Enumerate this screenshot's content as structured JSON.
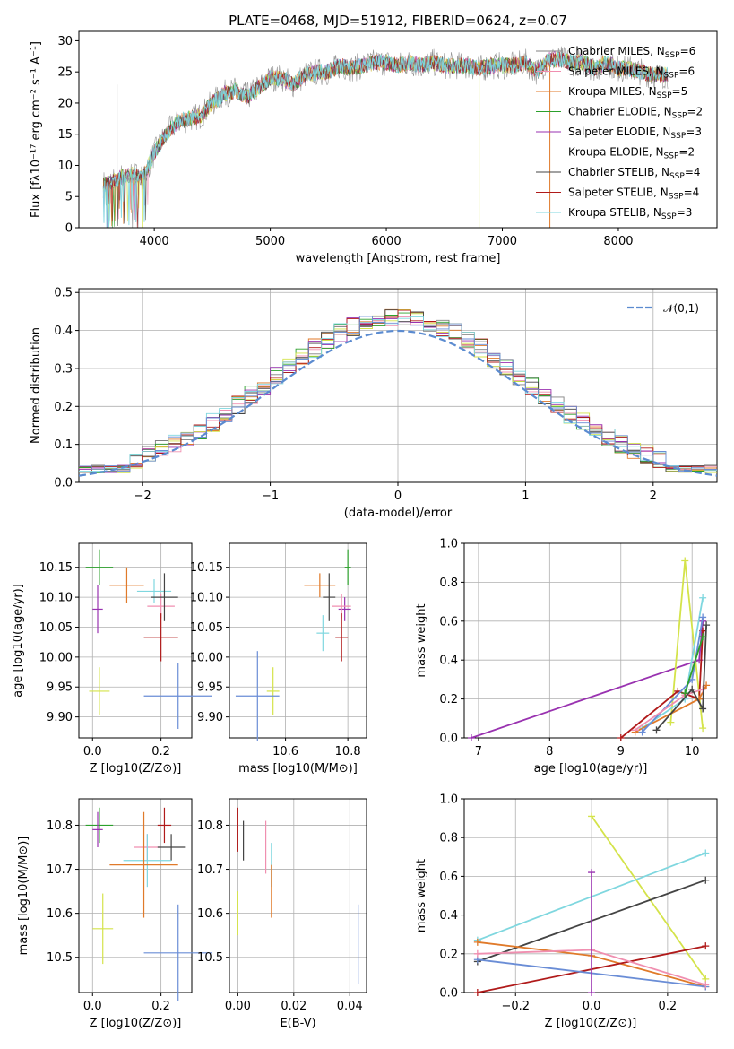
{
  "figure": {
    "title": "PLATE=0468, MJD=51912, FIBERID=0624, z=0.07"
  },
  "legend_colors": [
    "#808080",
    "#f08fb0",
    "#e07a2a",
    "#2ca02c",
    "#9932b0",
    "#d4e34a",
    "#444444",
    "#b01a1a",
    "#7fd7df"
  ],
  "chart_data": [
    {
      "id": "spectrum",
      "type": "line",
      "xlabel": "wavelength [Angstrom, rest frame]",
      "ylabel": "Flux [fλ10⁻¹⁷ erg cm⁻² s⁻¹ A⁻¹]",
      "xlim": [
        3350,
        8850
      ],
      "ylim": [
        0,
        31.5
      ],
      "xticks": [
        4000,
        5000,
        6000,
        7000,
        8000
      ],
      "yticks": [
        0,
        5,
        10,
        15,
        20,
        25,
        30
      ],
      "grid": false,
      "legend_position": "top-right",
      "envelope_x": [
        3600,
        3700,
        3800,
        3900,
        4000,
        4100,
        4200,
        4300,
        4400,
        4500,
        4600,
        4700,
        4800,
        4900,
        5000,
        5100,
        5200,
        5300,
        5400,
        5500,
        5600,
        5700,
        5800,
        5900,
        6000,
        6100,
        6200,
        6300,
        6400,
        6500,
        6600,
        6700,
        6800,
        6900,
        7000,
        7100,
        7200,
        7300,
        7400,
        7500,
        7600,
        7700,
        7800,
        7900,
        8000,
        8100,
        8200,
        8300,
        8400
      ],
      "envelope_y": [
        7,
        8,
        8.5,
        8,
        12,
        15,
        17,
        17.5,
        18,
        20,
        21.5,
        22,
        21,
        22.5,
        24,
        24,
        23,
        24.5,
        25,
        25,
        26,
        25.5,
        26,
        26.5,
        26.5,
        26,
        26.5,
        26,
        26.5,
        26,
        26,
        26,
        25.5,
        26,
        26,
        26,
        26.5,
        25,
        27,
        27,
        26.5,
        26.5,
        25.5,
        26.5,
        25.5,
        25.5,
        25,
        24.5,
        24.5
      ],
      "legend": [
        "Chabrier MILES, N_SSP=6",
        "Salpeter MILES, N_SSP=6",
        "Kroupa MILES, N_SSP=5",
        "Chabrier ELODIE, N_SSP=2",
        "Salpeter ELODIE, N_SSP=3",
        "Kroupa ELODIE, N_SSP=2",
        "Chabrier STELIB, N_SSP=4",
        "Salpeter STELIB, N_SSP=4",
        "Kroupa STELIB, N_SSP=3"
      ]
    },
    {
      "id": "residuals",
      "type": "line",
      "xlabel": "(data-model)/error",
      "ylabel": "Normed distribution",
      "xlim": [
        -2.5,
        2.5
      ],
      "ylim": [
        0,
        0.51
      ],
      "xticks": [
        -2,
        -1,
        0,
        1,
        2
      ],
      "yticks": [
        0.0,
        0.1,
        0.2,
        0.3,
        0.4,
        0.5
      ],
      "grid": true,
      "legend": [
        "𝒩(0,1)"
      ],
      "legend_position": "top-right"
    },
    {
      "id": "age_vs_Z",
      "type": "scatter",
      "xlabel": "Z [log10(Z/Z⊙)]",
      "ylabel": "age  [log10(age/yr)]",
      "xlim": [
        -0.04,
        0.29
      ],
      "ylim": [
        9.865,
        10.19
      ],
      "xticks": [
        0.0,
        0.2
      ],
      "yticks": [
        9.9,
        9.95,
        10.0,
        10.05,
        10.1,
        10.15
      ],
      "grid": true,
      "points": [
        {
          "x": 0.02,
          "y": 10.15,
          "xerr": 0.04,
          "yerr": 0.03,
          "color": "#2ca02c"
        },
        {
          "x": 0.1,
          "y": 10.12,
          "xerr": 0.05,
          "yerr": 0.03,
          "color": "#e07a2a"
        },
        {
          "x": 0.015,
          "y": 10.08,
          "xerr": 0.015,
          "yerr": 0.04,
          "color": "#9932b0"
        },
        {
          "x": 0.18,
          "y": 10.11,
          "xerr": 0.05,
          "yerr": 0.02,
          "color": "#7fd7df"
        },
        {
          "x": 0.2,
          "y": 10.085,
          "xerr": 0.04,
          "yerr": 0.02,
          "color": "#f08fb0"
        },
        {
          "x": 0.21,
          "y": 10.1,
          "xerr": 0.04,
          "yerr": 0.04,
          "color": "#444444"
        },
        {
          "x": 0.2,
          "y": 10.033,
          "xerr": 0.05,
          "yerr": 0.04,
          "color": "#b01a1a"
        },
        {
          "x": 0.02,
          "y": 9.943,
          "xerr": 0.03,
          "yerr": 0.04,
          "color": "#d4e34a"
        },
        {
          "x": 0.25,
          "y": 9.935,
          "xerr": 0.1,
          "yerr": 0.055,
          "color": "#6a8dd6"
        }
      ]
    },
    {
      "id": "age_vs_mass",
      "type": "scatter",
      "xlabel": "mass [log10(M/M⊙)]",
      "ylabel": "",
      "xlim": [
        10.42,
        10.86
      ],
      "ylim": [
        9.865,
        10.19
      ],
      "xticks": [
        10.6,
        10.8
      ],
      "yticks": [
        9.9,
        9.95,
        10.0,
        10.05,
        10.1,
        10.15
      ],
      "grid": true,
      "points": [
        {
          "x": 10.8,
          "y": 10.15,
          "xerr": 0.01,
          "yerr": 0.03,
          "color": "#2ca02c"
        },
        {
          "x": 10.71,
          "y": 10.12,
          "xerr": 0.05,
          "yerr": 0.02,
          "color": "#e07a2a"
        },
        {
          "x": 10.74,
          "y": 10.1,
          "xerr": 0.02,
          "yerr": 0.04,
          "color": "#444444"
        },
        {
          "x": 10.79,
          "y": 10.08,
          "xerr": 0.02,
          "yerr": 0.02,
          "color": "#9932b0"
        },
        {
          "x": 10.78,
          "y": 10.085,
          "xerr": 0.03,
          "yerr": 0.02,
          "color": "#f08fb0"
        },
        {
          "x": 10.72,
          "y": 10.04,
          "xerr": 0.02,
          "yerr": 0.03,
          "color": "#7fd7df"
        },
        {
          "x": 10.78,
          "y": 10.033,
          "xerr": 0.02,
          "yerr": 0.04,
          "color": "#b01a1a"
        },
        {
          "x": 10.56,
          "y": 9.943,
          "xerr": 0.02,
          "yerr": 0.04,
          "color": "#d4e34a"
        },
        {
          "x": 10.51,
          "y": 9.935,
          "xerr": 0.07,
          "yerr": 0.075,
          "color": "#6a8dd6"
        }
      ]
    },
    {
      "id": "mass_weight_vs_age",
      "type": "line",
      "xlabel": "age  [log10(age/yr)]",
      "ylabel": "mass weight",
      "xlim": [
        6.8,
        10.35
      ],
      "ylim": [
        0.0,
        1.0
      ],
      "xticks": [
        7,
        8,
        9,
        10
      ],
      "yticks": [
        0.0,
        0.2,
        0.4,
        0.6,
        0.8,
        1.0
      ],
      "grid": true,
      "series": [
        {
          "color": "#9932b0",
          "x": [
            6.9,
            10.1,
            10.15
          ],
          "y": [
            0.0,
            0.4,
            0.6
          ]
        },
        {
          "color": "#d4e34a",
          "x": [
            9.7,
            9.9,
            10.15
          ],
          "y": [
            0.08,
            0.91,
            0.05
          ]
        },
        {
          "color": "#7fd7df",
          "x": [
            9.3,
            9.9,
            10.15
          ],
          "y": [
            0.05,
            0.2,
            0.72
          ]
        },
        {
          "color": "#b01a1a",
          "x": [
            9.0,
            9.8,
            10.1,
            10.15
          ],
          "y": [
            0.0,
            0.24,
            0.2,
            0.55
          ]
        },
        {
          "color": "#e07a2a",
          "x": [
            9.2,
            10.1,
            10.2
          ],
          "y": [
            0.03,
            0.2,
            0.27
          ]
        },
        {
          "color": "#6a8dd6",
          "x": [
            9.3,
            10.0,
            10.15
          ],
          "y": [
            0.03,
            0.3,
            0.62
          ]
        },
        {
          "color": "#f08fb0",
          "x": [
            9.2,
            9.9,
            10.15
          ],
          "y": [
            0.04,
            0.22,
            0.25
          ]
        },
        {
          "color": "#444444",
          "x": [
            9.5,
            10.0,
            10.15,
            10.2
          ],
          "y": [
            0.04,
            0.25,
            0.15,
            0.58
          ]
        },
        {
          "color": "#2ca02c",
          "x": [
            9.9,
            10.15
          ],
          "y": [
            0.23,
            0.52
          ]
        }
      ]
    },
    {
      "id": "mass_vs_Z",
      "type": "scatter",
      "xlabel": "Z [log10(Z/Z⊙)]",
      "ylabel": "mass [log10(M/M⊙)]",
      "xlim": [
        -0.04,
        0.29
      ],
      "ylim": [
        10.42,
        10.86
      ],
      "xticks": [
        0.0,
        0.2
      ],
      "yticks": [
        10.5,
        10.6,
        10.7,
        10.8
      ],
      "grid": true,
      "points": [
        {
          "x": 0.02,
          "y": 10.8,
          "xerr": 0.04,
          "yerr": 0.04,
          "color": "#2ca02c"
        },
        {
          "x": 0.015,
          "y": 10.79,
          "xerr": 0.015,
          "yerr": 0.04,
          "color": "#9932b0"
        },
        {
          "x": 0.21,
          "y": 10.8,
          "xerr": 0.02,
          "yerr": 0.04,
          "color": "#b01a1a"
        },
        {
          "x": 0.16,
          "y": 10.75,
          "xerr": 0.04,
          "yerr": 0.03,
          "color": "#f08fb0"
        },
        {
          "x": 0.23,
          "y": 10.75,
          "xerr": 0.04,
          "yerr": 0.03,
          "color": "#444444"
        },
        {
          "x": 0.16,
          "y": 10.72,
          "xerr": 0.07,
          "yerr": 0.06,
          "color": "#7fd7df"
        },
        {
          "x": 0.15,
          "y": 10.71,
          "xerr": 0.1,
          "yerr": 0.12,
          "color": "#e07a2a"
        },
        {
          "x": 0.03,
          "y": 10.565,
          "xerr": 0.03,
          "yerr": 0.08,
          "color": "#d4e34a"
        },
        {
          "x": 0.25,
          "y": 10.51,
          "xerr": 0.1,
          "yerr": 0.11,
          "color": "#6a8dd6"
        }
      ]
    },
    {
      "id": "mass_vs_EBV",
      "type": "scatter",
      "xlabel": "E(B-V)",
      "ylabel": "",
      "xlim": [
        -0.003,
        0.046
      ],
      "ylim": [
        10.42,
        10.86
      ],
      "xticks": [
        0.0,
        0.02,
        0.04
      ],
      "yticks": [
        10.5,
        10.6,
        10.7,
        10.8
      ],
      "grid": true,
      "points": [
        {
          "x": 0.0,
          "y": 10.79,
          "xerr": 0,
          "yerr": 0.05,
          "color": "#b01a1a"
        },
        {
          "x": 0.002,
          "y": 10.765,
          "xerr": 0,
          "yerr": 0.045,
          "color": "#444444"
        },
        {
          "x": 0.0,
          "y": 10.6,
          "xerr": 0,
          "yerr": 0.05,
          "color": "#d4e34a"
        },
        {
          "x": 0.01,
          "y": 10.75,
          "xerr": 0,
          "yerr": 0.06,
          "color": "#f08fb0"
        },
        {
          "x": 0.012,
          "y": 10.71,
          "xerr": 0,
          "yerr": 0.05,
          "color": "#7fd7df"
        },
        {
          "x": 0.012,
          "y": 10.65,
          "xerr": 0,
          "yerr": 0.06,
          "color": "#e07a2a"
        },
        {
          "x": 0.043,
          "y": 10.53,
          "xerr": 0,
          "yerr": 0.09,
          "color": "#6a8dd6"
        }
      ]
    },
    {
      "id": "mass_weight_vs_Z",
      "type": "line",
      "xlabel": "Z [log10(Z/Z⊙)]",
      "ylabel": "mass weight",
      "xlim": [
        -0.335,
        0.33
      ],
      "ylim": [
        0.0,
        1.0
      ],
      "xticks": [
        -0.2,
        0.0,
        0.2
      ],
      "yticks": [
        0.0,
        0.2,
        0.4,
        0.6,
        0.8,
        1.0
      ],
      "grid": true,
      "series": [
        {
          "color": "#d4e34a",
          "x": [
            0.0,
            0.3
          ],
          "y": [
            0.91,
            0.07
          ]
        },
        {
          "color": "#7fd7df",
          "x": [
            -0.3,
            0.3
          ],
          "y": [
            0.27,
            0.72
          ]
        },
        {
          "color": "#444444",
          "x": [
            -0.3,
            0.3
          ],
          "y": [
            0.16,
            0.58
          ]
        },
        {
          "color": "#e07a2a",
          "x": [
            -0.3,
            0.0,
            0.3
          ],
          "y": [
            0.26,
            0.19,
            0.03
          ]
        },
        {
          "color": "#b01a1a",
          "x": [
            -0.3,
            0.3
          ],
          "y": [
            0.0,
            0.24
          ]
        },
        {
          "color": "#6a8dd6",
          "x": [
            -0.3,
            0.3
          ],
          "y": [
            0.17,
            0.03
          ]
        },
        {
          "color": "#f08fb0",
          "x": [
            -0.3,
            0.0,
            0.3
          ],
          "y": [
            0.2,
            0.22,
            0.04
          ]
        },
        {
          "color": "#9932b0",
          "x": [
            0.0,
            0.0
          ],
          "y": [
            0.0,
            0.62
          ]
        }
      ]
    }
  ]
}
